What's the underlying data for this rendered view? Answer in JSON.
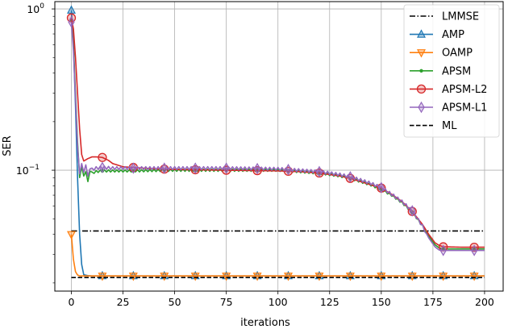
{
  "chart_data": {
    "type": "line",
    "title": "",
    "xlabel": "iterations",
    "ylabel": "SER",
    "xscale": "linear",
    "yscale": "log",
    "xlim": [
      -8,
      209
    ],
    "ylim": [
      0.0178,
      1.11
    ],
    "xticks": [
      0,
      25,
      50,
      75,
      100,
      125,
      150,
      175,
      200
    ],
    "xtick_labels": [
      "0",
      "25",
      "50",
      "75",
      "100",
      "125",
      "150",
      "175",
      "200"
    ],
    "yticks_major": [
      1,
      0.1
    ],
    "ytick_labels": [
      "10^0",
      "10^-1"
    ],
    "grid": true,
    "legend_position": "upper right",
    "series": [
      {
        "name": "LMMSE",
        "color": "#000000",
        "linestyle": "dashdot",
        "marker": "none",
        "x": [
          0,
          200
        ],
        "y": [
          0.042,
          0.042
        ]
      },
      {
        "name": "AMP",
        "color": "#1f77b4",
        "linestyle": "solid",
        "marker": "triangle-up",
        "markevery": 15,
        "x": [
          0,
          1,
          2,
          3,
          4,
          5,
          6,
          8,
          10,
          15,
          200
        ],
        "y": [
          0.98,
          0.6,
          0.25,
          0.09,
          0.04,
          0.026,
          0.0225,
          0.0222,
          0.0221,
          0.0221,
          0.0221
        ]
      },
      {
        "name": "OAMP",
        "color": "#ff7f0e",
        "linestyle": "solid",
        "marker": "triangle-down",
        "markevery": 15,
        "x": [
          0,
          1,
          2,
          3,
          4,
          6,
          10,
          200
        ],
        "y": [
          0.04,
          0.028,
          0.0235,
          0.0224,
          0.0221,
          0.0221,
          0.0221,
          0.0221
        ]
      },
      {
        "name": "APSM",
        "color": "#2ca02c",
        "linestyle": "solid",
        "marker": "dot",
        "markevery": 15,
        "x": [
          0,
          1,
          2,
          3,
          4,
          5,
          6,
          7,
          8,
          9,
          10,
          12,
          15,
          20,
          30,
          50,
          75,
          100,
          110,
          120,
          130,
          135,
          140,
          145,
          150,
          155,
          160,
          165,
          170,
          173,
          176,
          178,
          180,
          190,
          200
        ],
        "y": [
          0.86,
          0.6,
          0.3,
          0.15,
          0.09,
          0.105,
          0.092,
          0.098,
          0.085,
          0.1,
          0.096,
          0.098,
          0.099,
          0.099,
          0.099,
          0.1,
          0.1,
          0.1,
          0.098,
          0.096,
          0.092,
          0.089,
          0.085,
          0.081,
          0.076,
          0.07,
          0.063,
          0.055,
          0.045,
          0.039,
          0.0345,
          0.033,
          0.0325,
          0.0325,
          0.0325
        ]
      },
      {
        "name": "APSM-L2",
        "color": "#d62728",
        "linestyle": "solid",
        "marker": "circle",
        "markevery": 15,
        "x": [
          0,
          1,
          2,
          3,
          4,
          5,
          6,
          7,
          8,
          10,
          12,
          15,
          18,
          20,
          25,
          30,
          40,
          50,
          75,
          100,
          110,
          120,
          130,
          135,
          140,
          145,
          150,
          155,
          160,
          165,
          170,
          173,
          176,
          178,
          180,
          190,
          200
        ],
        "y": [
          0.88,
          0.75,
          0.5,
          0.3,
          0.18,
          0.125,
          0.114,
          0.116,
          0.118,
          0.121,
          0.121,
          0.12,
          0.115,
          0.11,
          0.105,
          0.104,
          0.102,
          0.101,
          0.1,
          0.099,
          0.098,
          0.096,
          0.092,
          0.089,
          0.085,
          0.081,
          0.0775,
          0.071,
          0.064,
          0.0555,
          0.046,
          0.04,
          0.0355,
          0.0342,
          0.0335,
          0.0333,
          0.0333
        ]
      },
      {
        "name": "APSM-L1",
        "color": "#9467bd",
        "linestyle": "solid",
        "marker": "diamond",
        "markevery": 15,
        "x": [
          0,
          1,
          2,
          3,
          4,
          5,
          6,
          7,
          8,
          9,
          10,
          12,
          15,
          20,
          30,
          50,
          75,
          100,
          110,
          120,
          130,
          135,
          140,
          145,
          150,
          155,
          160,
          165,
          170,
          173,
          176,
          178,
          180,
          190,
          200
        ],
        "y": [
          0.83,
          0.55,
          0.28,
          0.14,
          0.095,
          0.11,
          0.097,
          0.108,
          0.092,
          0.104,
          0.101,
          0.103,
          0.104,
          0.103,
          0.103,
          0.103,
          0.103,
          0.102,
          0.1,
          0.098,
          0.094,
          0.091,
          0.087,
          0.083,
          0.078,
          0.071,
          0.064,
          0.056,
          0.045,
          0.038,
          0.0335,
          0.032,
          0.0318,
          0.0318,
          0.0318
        ]
      },
      {
        "name": "ML",
        "color": "#000000",
        "linestyle": "dashed",
        "marker": "none",
        "x": [
          0,
          200
        ],
        "y": [
          0.0216,
          0.0216
        ]
      }
    ]
  }
}
